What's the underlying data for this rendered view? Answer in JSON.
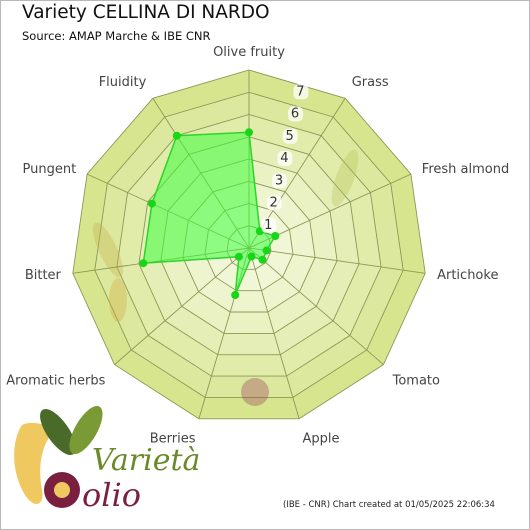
{
  "header": {
    "title": "Variety CELLINA DI NARDO",
    "subtitle": "Source: AMAP Marche & IBE CNR"
  },
  "footer": {
    "credit": "(IBE - CNR) Chart created at 01/05/2025 22:06:34"
  },
  "logo": {
    "text_top": "Varietà",
    "text_bottom": "olio"
  },
  "colors": {
    "ring_fill_outer": "#d7e58f",
    "ring_fill_inner": "#f4f8df",
    "grid_line": "#8c9a55",
    "series_fill": "#3dff3d",
    "series_stroke": "#29d629",
    "marker": "#16d616"
  },
  "chart_data": {
    "type": "radar",
    "title": "Variety CELLINA DI NARDO",
    "subtitle": "Source: AMAP Marche & IBE CNR",
    "categories": [
      "Olive fruity",
      "Grass",
      "Fresh almond",
      "Artichoke",
      "Tomato",
      "Apple",
      "Berries",
      "Aromatic herbs",
      "Bitter",
      "Pungent",
      "Fluidity"
    ],
    "ticks": [
      "1",
      "2",
      "3",
      "4",
      "5",
      "6",
      "7"
    ],
    "rmax": 8,
    "grid": true,
    "series": [
      {
        "values": [
          5.2,
          0.9,
          1.3,
          0.8,
          0.8,
          0.4,
          2.2,
          0.6,
          4.8,
          4.8,
          6.0
        ]
      }
    ]
  }
}
